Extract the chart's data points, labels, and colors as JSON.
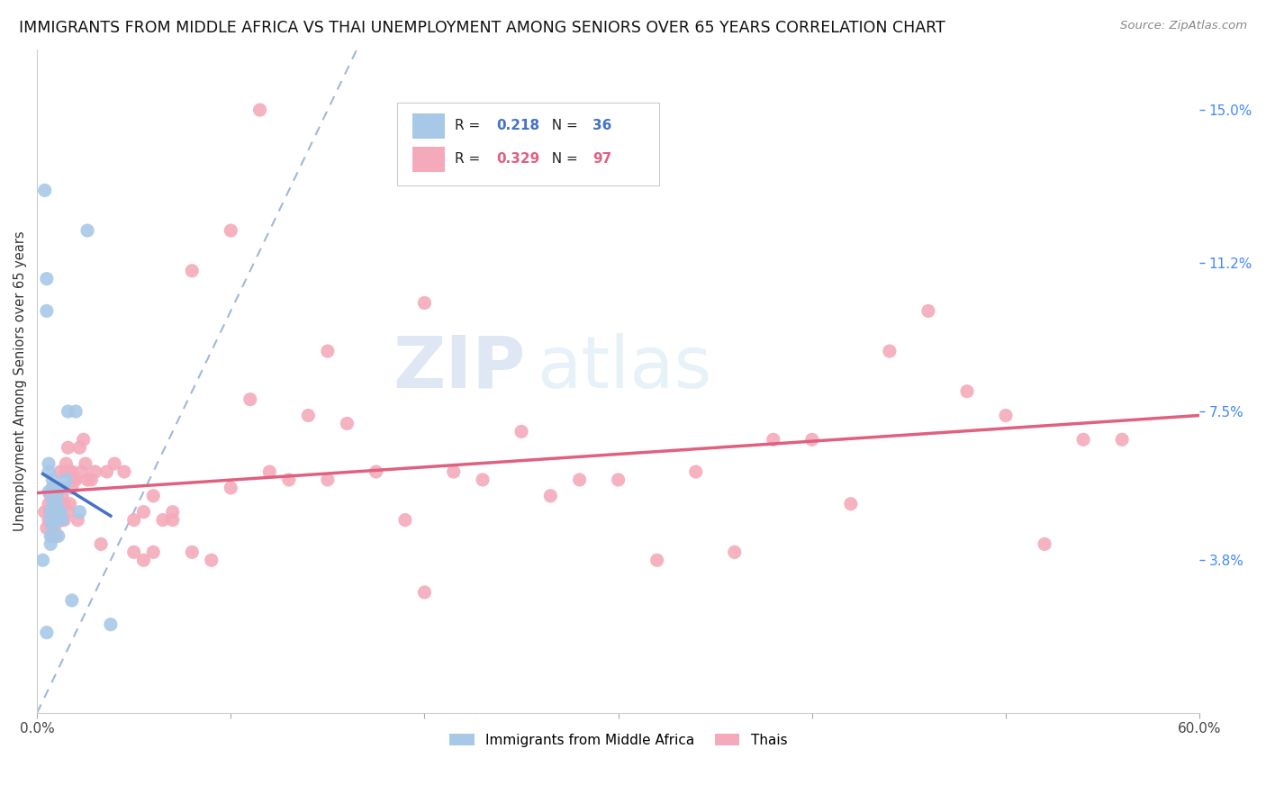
{
  "title": "IMMIGRANTS FROM MIDDLE AFRICA VS THAI UNEMPLOYMENT AMONG SENIORS OVER 65 YEARS CORRELATION CHART",
  "source": "Source: ZipAtlas.com",
  "ylabel": "Unemployment Among Seniors over 65 years",
  "xlim": [
    0.0,
    0.6
  ],
  "ylim": [
    0.0,
    0.165
  ],
  "xticks": [
    0.0,
    0.1,
    0.2,
    0.3,
    0.4,
    0.5,
    0.6
  ],
  "xticklabels": [
    "0.0%",
    "",
    "",
    "",
    "",
    "",
    "60.0%"
  ],
  "yticks_right": [
    0.038,
    0.075,
    0.112,
    0.15
  ],
  "yticklabels_right": [
    "3.8%",
    "7.5%",
    "11.2%",
    "15.0%"
  ],
  "legend_blue_r": "0.218",
  "legend_blue_n": "36",
  "legend_pink_r": "0.329",
  "legend_pink_n": "97",
  "legend_label_blue": "Immigrants from Middle Africa",
  "legend_label_pink": "Thais",
  "blue_color": "#a8c8e8",
  "pink_color": "#f4aabb",
  "blue_line_color": "#4472c4",
  "pink_line_color": "#e06080",
  "dashed_line_color": "#a0b8d8",
  "watermark_zip": "ZIP",
  "watermark_atlas": "atlas",
  "blue_scatter_x": [
    0.003,
    0.004,
    0.005,
    0.005,
    0.006,
    0.006,
    0.006,
    0.007,
    0.007,
    0.007,
    0.007,
    0.008,
    0.008,
    0.008,
    0.008,
    0.009,
    0.009,
    0.009,
    0.01,
    0.01,
    0.01,
    0.01,
    0.011,
    0.011,
    0.012,
    0.012,
    0.013,
    0.014,
    0.015,
    0.016,
    0.018,
    0.02,
    0.022,
    0.026,
    0.038,
    0.005
  ],
  "blue_scatter_y": [
    0.038,
    0.13,
    0.1,
    0.108,
    0.055,
    0.06,
    0.062,
    0.05,
    0.048,
    0.044,
    0.042,
    0.058,
    0.056,
    0.046,
    0.052,
    0.052,
    0.05,
    0.048,
    0.048,
    0.05,
    0.052,
    0.054,
    0.056,
    0.044,
    0.05,
    0.05,
    0.048,
    0.056,
    0.058,
    0.075,
    0.028,
    0.075,
    0.05,
    0.12,
    0.022,
    0.02
  ],
  "pink_scatter_x": [
    0.004,
    0.005,
    0.006,
    0.006,
    0.007,
    0.007,
    0.007,
    0.008,
    0.008,
    0.008,
    0.009,
    0.009,
    0.009,
    0.009,
    0.01,
    0.01,
    0.01,
    0.01,
    0.011,
    0.011,
    0.011,
    0.011,
    0.012,
    0.012,
    0.012,
    0.013,
    0.013,
    0.013,
    0.014,
    0.014,
    0.015,
    0.015,
    0.016,
    0.016,
    0.017,
    0.017,
    0.018,
    0.018,
    0.019,
    0.02,
    0.021,
    0.022,
    0.023,
    0.024,
    0.025,
    0.026,
    0.028,
    0.03,
    0.033,
    0.036,
    0.04,
    0.045,
    0.05,
    0.055,
    0.06,
    0.065,
    0.07,
    0.08,
    0.09,
    0.1,
    0.11,
    0.12,
    0.13,
    0.14,
    0.15,
    0.16,
    0.175,
    0.19,
    0.2,
    0.215,
    0.23,
    0.25,
    0.265,
    0.28,
    0.3,
    0.32,
    0.34,
    0.36,
    0.38,
    0.4,
    0.42,
    0.44,
    0.46,
    0.48,
    0.5,
    0.52,
    0.54,
    0.56,
    0.15,
    0.2,
    0.08,
    0.1,
    0.115,
    0.05,
    0.055,
    0.06,
    0.07
  ],
  "pink_scatter_y": [
    0.05,
    0.046,
    0.048,
    0.052,
    0.048,
    0.05,
    0.054,
    0.05,
    0.056,
    0.044,
    0.046,
    0.05,
    0.048,
    0.052,
    0.044,
    0.048,
    0.05,
    0.052,
    0.048,
    0.052,
    0.05,
    0.056,
    0.048,
    0.052,
    0.06,
    0.052,
    0.054,
    0.048,
    0.048,
    0.052,
    0.06,
    0.062,
    0.05,
    0.066,
    0.052,
    0.06,
    0.06,
    0.056,
    0.058,
    0.058,
    0.048,
    0.066,
    0.06,
    0.068,
    0.062,
    0.058,
    0.058,
    0.06,
    0.042,
    0.06,
    0.062,
    0.06,
    0.048,
    0.05,
    0.054,
    0.048,
    0.048,
    0.04,
    0.038,
    0.056,
    0.078,
    0.06,
    0.058,
    0.074,
    0.058,
    0.072,
    0.06,
    0.048,
    0.03,
    0.06,
    0.058,
    0.07,
    0.054,
    0.058,
    0.058,
    0.038,
    0.06,
    0.04,
    0.068,
    0.068,
    0.052,
    0.09,
    0.1,
    0.08,
    0.074,
    0.042,
    0.068,
    0.068,
    0.09,
    0.102,
    0.11,
    0.12,
    0.15,
    0.04,
    0.038,
    0.04,
    0.05
  ]
}
